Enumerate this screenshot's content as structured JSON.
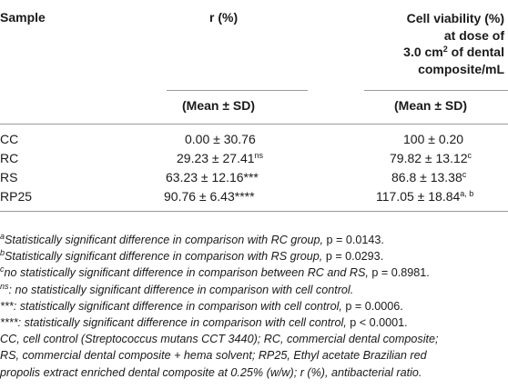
{
  "table": {
    "headers": {
      "sample": "Sample",
      "r": "r (%)",
      "viability_lines": [
        "Cell viability (%)",
        "at dose of",
        "3.0 cm",
        "2",
        " of dental",
        "composite/mL"
      ],
      "mean_sd_r": "(Mean ± SD)",
      "mean_sd_v": "(Mean ± SD)"
    },
    "rows": [
      {
        "sample": "CC",
        "r": "0.00 ± 30.76",
        "r_sup": "",
        "v": "100 ± 0.20",
        "v_sup": ""
      },
      {
        "sample": "RC",
        "r": "29.23 ± 27.41",
        "r_sup": "ns",
        "v": "79.82 ± 13.12",
        "v_sup": "c"
      },
      {
        "sample": "RS",
        "r": "63.23 ± 12.16***",
        "r_sup": "",
        "v": "86.8 ± 13.38",
        "v_sup": "c"
      },
      {
        "sample": "RP25",
        "r": "90.76 ± 6.43****",
        "r_sup": "",
        "v": "117.05 ± 18.84",
        "v_sup": "a, b"
      }
    ]
  },
  "footnotes": {
    "a": {
      "mark": "a",
      "text": "Statistically significant difference in comparison with RC group, ",
      "p": "p = 0.0143."
    },
    "b": {
      "mark": "b",
      "text": "Statistically significant difference in comparison with RS group, ",
      "p": "p = 0.0293."
    },
    "c": {
      "mark": "c",
      "text": "no statistically significant difference in comparison between RC and RS, ",
      "p": "p = 0.8981."
    },
    "ns": {
      "mark": "ns",
      "text": ": no statistically significant difference in comparison with cell control."
    },
    "three": {
      "text": "***: statistically significant difference in comparison with cell control, ",
      "p": "p = 0.0006."
    },
    "four": {
      "text": "****: statistically significant difference in comparison with cell control, ",
      "p": "p < 0.0001."
    },
    "abbrev": [
      "CC, cell control (Streptococcus mutans CCT 3440); RC, commercial dental composite;",
      "RS, commercial dental composite + hema solvent; RP25, Ethyl acetate Brazilian red",
      "propolis extract enriched dental composite at 0.25% (w/w); r (%), antibacterial ratio."
    ]
  }
}
